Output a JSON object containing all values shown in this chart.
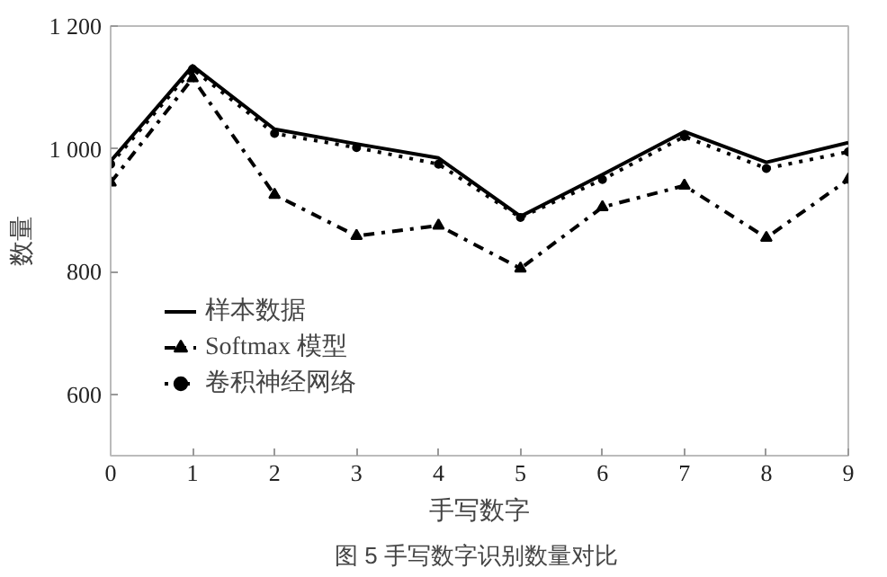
{
  "chart_data": {
    "type": "line",
    "xlabel": "手写数字",
    "ylabel": "数量",
    "annotations": [
      "图 5  手写数字识别数量对比"
    ],
    "x": [
      0,
      1,
      2,
      3,
      4,
      5,
      6,
      7,
      8,
      9
    ],
    "xlim": [
      0,
      9
    ],
    "xticks": [
      0,
      1,
      2,
      3,
      4,
      5,
      6,
      7,
      8,
      9
    ],
    "ylim": [
      500,
      1200
    ],
    "yticks": [
      {
        "value": 600,
        "label": "600"
      },
      {
        "value": 800,
        "label": "800"
      },
      {
        "value": 1000,
        "label": "1 000"
      },
      {
        "value": 1200,
        "label": "1 200"
      }
    ],
    "grid": false,
    "legend": "bottom left",
    "series": [
      {
        "name": "样本数据",
        "color": "#000000",
        "marker": "none",
        "line_style": "solid",
        "values": [
          980,
          1135,
          1032,
          1008,
          985,
          890,
          958,
          1028,
          978,
          1010
        ]
      },
      {
        "name": "Softmax 模型",
        "color": "#000000",
        "marker": "triangle",
        "line_style": "dashdot",
        "values": [
          945,
          1115,
          925,
          858,
          875,
          805,
          905,
          940,
          855,
          950
        ]
      },
      {
        "name": "卷积神经网络",
        "color": "#000000",
        "marker": "circle",
        "line_style": "dotted",
        "values": [
          975,
          1130,
          1025,
          1002,
          975,
          888,
          950,
          1020,
          968,
          995
        ]
      }
    ]
  }
}
